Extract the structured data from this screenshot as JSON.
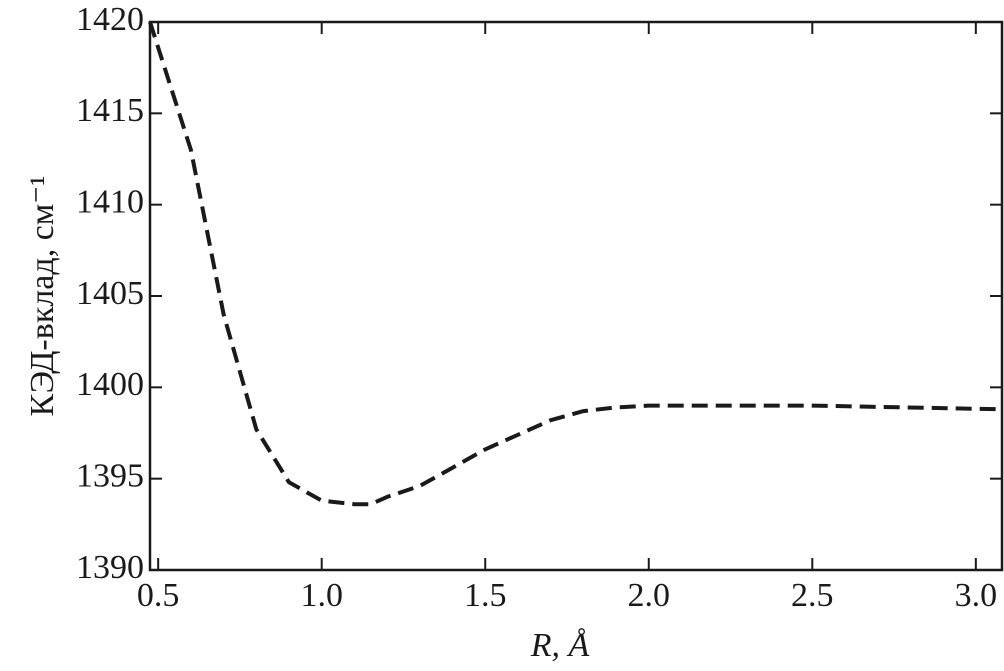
{
  "chart_data": {
    "type": "line",
    "ylabel": "КЭД-вклад, см⁻¹",
    "xlabel": "R, Å",
    "series": [
      {
        "color": "#1a1a1a",
        "dash": true,
        "x": [
          0.475,
          0.6,
          0.7,
          0.8,
          0.9,
          1.0,
          1.1,
          1.15,
          1.2,
          1.3,
          1.4,
          1.5,
          1.6,
          1.7,
          1.8,
          1.9,
          2.0,
          2.5,
          3.08
        ],
        "values": [
          1420,
          1413.0,
          1404.0,
          1397.7,
          1394.8,
          1393.8,
          1393.6,
          1393.6,
          1394.0,
          1394.6,
          1395.6,
          1396.6,
          1397.4,
          1398.2,
          1398.7,
          1398.9,
          1399.0,
          1399.0,
          1398.8
        ]
      }
    ],
    "xlim": [
      0.475,
      3.08
    ],
    "xticks": [
      {
        "value": 0.5,
        "label": "0.5"
      },
      {
        "value": 1.0,
        "label": "1.0"
      },
      {
        "value": 1.5,
        "label": "1.5"
      },
      {
        "value": 2.0,
        "label": "2.0"
      },
      {
        "value": 2.5,
        "label": "2.5"
      },
      {
        "value": 3.0,
        "label": "3.0"
      }
    ],
    "ylim": [
      1390,
      1420
    ],
    "yticks": [
      1390,
      1395,
      1400,
      1405,
      1410,
      1415,
      1420
    ]
  }
}
